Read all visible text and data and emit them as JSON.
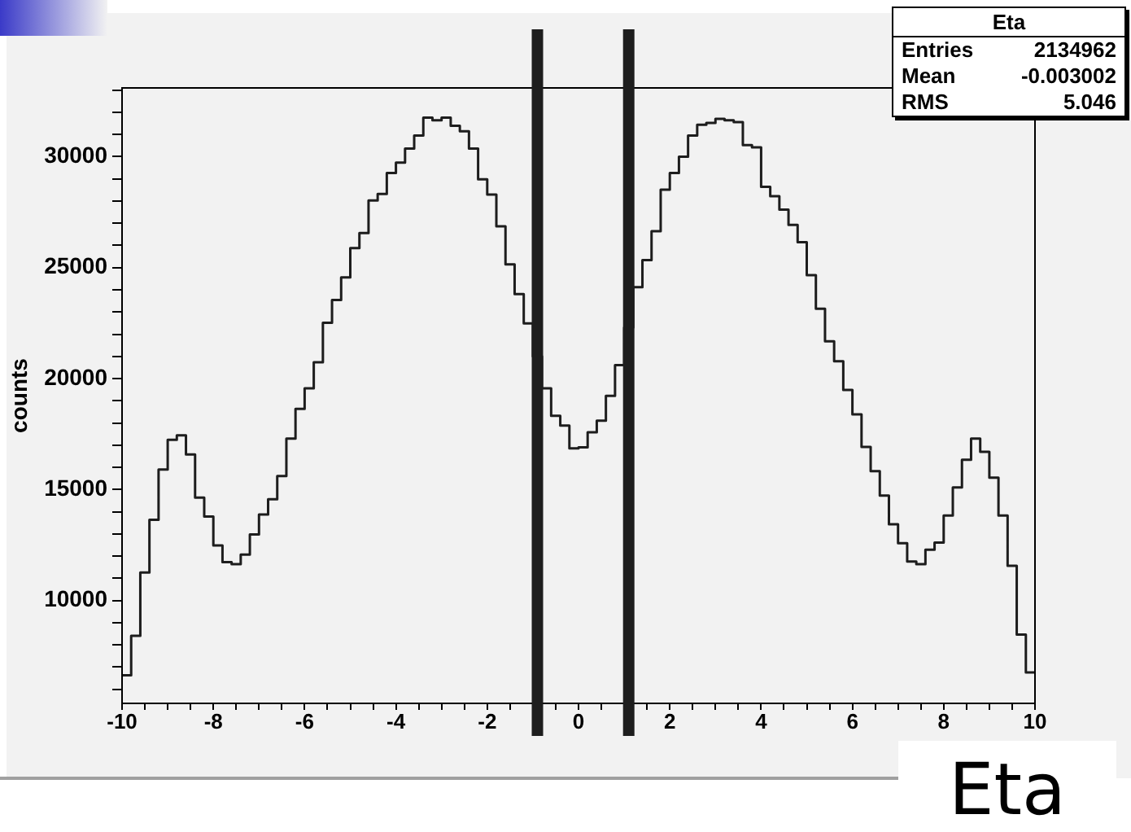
{
  "chart_data": {
    "type": "histogram",
    "ylabel": "counts",
    "xlabel": "Eta",
    "annotations": [
      "Eta",
      "Entries",
      "2134962",
      "Mean",
      "-0.003002",
      "RMS",
      "5.046"
    ],
    "bins": [
      -10,
      -9.8,
      -9.6,
      -9.4,
      -9.2,
      -9,
      -8.8,
      -8.6,
      -8.4,
      -8.2,
      -8,
      -7.8,
      -7.6,
      -7.4,
      -7.2,
      -7,
      -6.8,
      -6.6,
      -6.4,
      -6.2,
      -6,
      -5.8,
      -5.6,
      -5.4,
      -5.2,
      -5,
      -4.8,
      -4.6,
      -4.4,
      -4.2,
      -4,
      -3.8,
      -3.6,
      -3.4,
      -3.2,
      -3,
      -2.8,
      -2.6,
      -2.4,
      -2.2,
      -2,
      -1.8,
      -1.6,
      -1.4,
      -1.2,
      -1,
      -0.8,
      -0.6,
      -0.4,
      -0.2,
      0,
      0.2,
      0.4,
      0.6,
      0.8,
      1,
      1.2,
      1.4,
      1.6,
      1.8,
      2,
      2.2,
      2.4,
      2.6,
      2.8,
      3,
      3.2,
      3.4,
      3.6,
      3.8,
      4,
      4.2,
      4.4,
      4.6,
      4.8,
      5,
      5.2,
      5.4,
      5.6,
      5.8,
      6,
      6.2,
      6.4,
      6.6,
      6.8,
      7,
      7.2,
      7.4,
      7.6,
      7.8,
      8,
      8.2,
      8.4,
      8.6,
      8.8,
      9,
      9.2,
      9.4,
      9.6,
      9.8,
      10
    ],
    "values": [
      6630,
      8410,
      11260,
      13630,
      15900,
      17240,
      17440,
      16580,
      14630,
      13780,
      12480,
      11730,
      11630,
      12070,
      12970,
      13870,
      14560,
      15610,
      17290,
      18630,
      19560,
      20730,
      22510,
      23540,
      24560,
      25880,
      26560,
      28030,
      28320,
      29270,
      29730,
      30370,
      30950,
      31760,
      31640,
      31760,
      31390,
      31150,
      30370,
      28980,
      28290,
      26860,
      25150,
      23810,
      22490,
      21000,
      19560,
      18320,
      17880,
      16850,
      16900,
      17580,
      18100,
      19220,
      20610,
      22300,
      24120,
      25340,
      26640,
      28510,
      29270,
      30000,
      30950,
      31440,
      31520,
      31710,
      31640,
      31560,
      30520,
      30420,
      28640,
      28220,
      27610,
      26930,
      26150,
      24660,
      23150,
      21680,
      20780,
      19490,
      18390,
      16920,
      15830,
      14730,
      13430,
      12580,
      11750,
      11630,
      12290,
      12610,
      13830,
      15090,
      16340,
      17290,
      16700,
      15530,
      13830,
      11560,
      8460,
      6750
    ],
    "color": "#1a1a1a",
    "xlim": [
      -10,
      10
    ],
    "ylim": [
      5360,
      33100
    ],
    "xticks": [
      -10,
      {
        "value": -9.5,
        "label": null
      },
      {
        "value": -9,
        "label": null
      },
      {
        "value": -8.5,
        "label": null
      },
      -8,
      {
        "value": -7.5,
        "label": null
      },
      {
        "value": -7,
        "label": null
      },
      {
        "value": -6.5,
        "label": null
      },
      -6,
      {
        "value": -5.5,
        "label": null
      },
      {
        "value": -5,
        "label": null
      },
      {
        "value": -4.5,
        "label": null
      },
      -4,
      {
        "value": -3.5,
        "label": null
      },
      {
        "value": -3,
        "label": null
      },
      {
        "value": -2.5,
        "label": null
      },
      -2,
      {
        "value": -1.5,
        "label": null
      },
      {
        "value": -1,
        "label": null
      },
      {
        "value": -0.5,
        "label": null
      },
      0,
      {
        "value": 0.5,
        "label": null
      },
      {
        "value": 1,
        "label": null
      },
      {
        "value": 1.5,
        "label": null
      },
      2,
      {
        "value": 2.5,
        "label": null
      },
      {
        "value": 3,
        "label": null
      },
      {
        "value": 3.5,
        "label": null
      },
      4,
      {
        "value": 4.5,
        "label": null
      },
      {
        "value": 5,
        "label": null
      },
      {
        "value": 5.5,
        "label": null
      },
      6,
      {
        "value": 6.5,
        "label": null
      },
      {
        "value": 7,
        "label": null
      },
      {
        "value": 7.5,
        "label": null
      },
      8,
      {
        "value": 8.5,
        "label": null
      },
      {
        "value": 9,
        "label": null
      },
      {
        "value": 9.5,
        "label": null
      },
      10
    ],
    "yticks": [
      {
        "value": 6000,
        "label": null
      },
      {
        "value": 7000,
        "label": null
      },
      {
        "value": 8000,
        "label": null
      },
      {
        "value": 9000,
        "label": null
      },
      10000,
      {
        "value": 11000,
        "label": null
      },
      {
        "value": 12000,
        "label": null
      },
      {
        "value": 13000,
        "label": null
      },
      {
        "value": 14000,
        "label": null
      },
      15000,
      {
        "value": 16000,
        "label": null
      },
      {
        "value": 17000,
        "label": null
      },
      {
        "value": 18000,
        "label": null
      },
      {
        "value": 19000,
        "label": null
      },
      20000,
      {
        "value": 21000,
        "label": null
      },
      {
        "value": 22000,
        "label": null
      },
      {
        "value": 23000,
        "label": null
      },
      {
        "value": 24000,
        "label": null
      },
      25000,
      {
        "value": 26000,
        "label": null
      },
      {
        "value": 27000,
        "label": null
      },
      {
        "value": 28000,
        "label": null
      },
      {
        "value": 29000,
        "label": null
      },
      30000,
      {
        "value": 31000,
        "label": null
      },
      {
        "value": 32000,
        "label": null
      },
      {
        "value": 33000,
        "label": null
      }
    ],
    "ref_lines": [
      {
        "axis": "x",
        "value": -0.9,
        "color": "#1e1e1e"
      },
      {
        "axis": "x",
        "value": 1.1,
        "color": "#1e1e1e"
      }
    ],
    "grid": false,
    "legend": false
  }
}
